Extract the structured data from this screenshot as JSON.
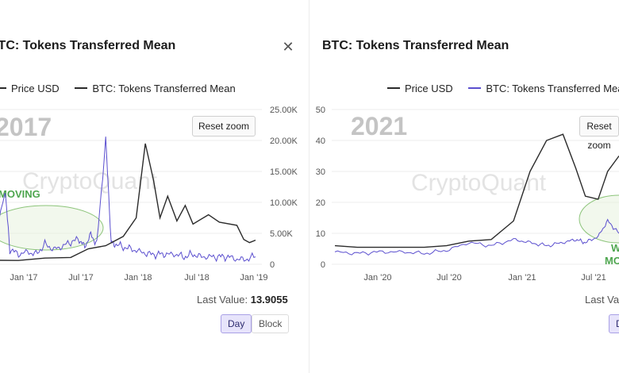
{
  "left": {
    "title": "BTC: Tokens Transferred Mean",
    "close_icon": "close-icon",
    "legend": [
      {
        "label": "Price USD",
        "color": "#2b2b2b"
      },
      {
        "label": "BTC: Tokens Transferred Mean",
        "color": "#5b4fcf"
      }
    ],
    "reset_zoom": "Reset zoom",
    "year_annotation": "2017",
    "watermark": "CryptoQuant",
    "moving_text": "MOVING",
    "last_value_label": "Last Value:",
    "last_value": "13.9055",
    "granularity": [
      "Day",
      "Block"
    ],
    "active_granularity": "Day"
  },
  "right": {
    "title": "BTC: Tokens Transferred Mean",
    "legend": [
      {
        "label": "Price USD",
        "color": "#2b2b2b"
      },
      {
        "label": "BTC: Tokens Transferred Mean",
        "color": "#5b4fcf"
      }
    ],
    "reset_zoom": "Reset zoom",
    "year_annotation": "2021",
    "watermark": "CryptoQuant",
    "moving_text_1": "W",
    "moving_text_2": "MO",
    "last_value_label": "Last Va",
    "granularity": [
      "D"
    ],
    "active_granularity": "D"
  },
  "colors": {
    "price": "#2b2b2b",
    "tokens": "#5b4fcf",
    "annotation_fill": "#e8f3df",
    "annotation_stroke": "#8cc47a",
    "moving_text": "#4ea64f",
    "grid": "#ececec"
  },
  "chart_data": [
    {
      "type": "line",
      "title": "BTC: Tokens Transferred Mean",
      "x_ticks": [
        "Jan '17",
        "Jul '17",
        "Jan '18",
        "Jul '18",
        "Jan '19"
      ],
      "y_right_ticks": [
        "25.00K",
        "20.00K",
        "15.00K",
        "10.00K",
        "5.00K",
        "0"
      ],
      "price_axis_range": [
        0,
        25000
      ],
      "grid": "horizontal",
      "legend_position": "top",
      "series": [
        {
          "name": "Price USD",
          "axis": "right",
          "x": [
            "2016-07-01",
            "2016-10-01",
            "2017-01-01",
            "2017-04-01",
            "2017-06-01",
            "2017-08-01",
            "2017-10-01",
            "2017-11-15",
            "2017-12-17",
            "2018-01-15",
            "2018-02-06",
            "2018-03-05",
            "2018-04-06",
            "2018-05-05",
            "2018-06-01",
            "2018-07-25",
            "2018-09-01",
            "2018-11-01",
            "2018-11-25",
            "2018-12-15",
            "2019-01-05"
          ],
          "values": [
            650,
            620,
            1000,
            1100,
            2500,
            3000,
            4500,
            7500,
            19500,
            13500,
            7500,
            11000,
            7000,
            9500,
            6500,
            8000,
            6800,
            6300,
            4000,
            3500,
            3900
          ]
        },
        {
          "name": "BTC: Tokens Transferred Mean",
          "axis": "left",
          "x": [
            "2016-07-01",
            "2016-08-15",
            "2016-09-01",
            "2016-10-01",
            "2016-11-01",
            "2016-12-01",
            "2017-01-01",
            "2017-02-01",
            "2017-03-01",
            "2017-04-01",
            "2017-05-01",
            "2017-05-20",
            "2017-06-10",
            "2017-07-01",
            "2017-08-01",
            "2017-08-20",
            "2017-09-01",
            "2017-10-01",
            "2017-11-01",
            "2017-12-01",
            "2018-01-01",
            "2018-02-01",
            "2018-03-01",
            "2018-04-01",
            "2018-05-01",
            "2018-06-01",
            "2018-07-01",
            "2018-08-01",
            "2018-09-01",
            "2018-10-01",
            "2018-11-01",
            "2018-12-01",
            "2019-01-05"
          ],
          "values": [
            3,
            30,
            6,
            4,
            5,
            4,
            8,
            6,
            7,
            9,
            10,
            7,
            12,
            8,
            50,
            9,
            8,
            7,
            6,
            5,
            4,
            4,
            4,
            4,
            3,
            4,
            3,
            3,
            3,
            3,
            2,
            2,
            3
          ]
        }
      ]
    },
    {
      "type": "line",
      "title": "BTC: Tokens Transferred Mean",
      "x_ticks": [
        "Jan '20",
        "Jul '20",
        "Jan '21",
        "Jul '21"
      ],
      "y_left_ticks": [
        "50",
        "40",
        "30",
        "20",
        "10",
        "0"
      ],
      "price_axis_range": [
        0,
        50
      ],
      "grid": "horizontal",
      "legend_position": "top",
      "series": [
        {
          "name": "Price USD",
          "axis": "left",
          "x": [
            "2019-08-01",
            "2019-10-01",
            "2019-12-01",
            "2020-02-01",
            "2020-04-01",
            "2020-06-01",
            "2020-08-01",
            "2020-10-01",
            "2020-12-01",
            "2021-01-15",
            "2021-03-01",
            "2021-04-15",
            "2021-05-20",
            "2021-06-15",
            "2021-07-20",
            "2021-08-15",
            "2021-09-15"
          ],
          "values": [
            6,
            5.5,
            5.5,
            5.5,
            5.5,
            6,
            7.5,
            8,
            14,
            30,
            40,
            42,
            31,
            22,
            21,
            30,
            35
          ]
        },
        {
          "name": "BTC: Tokens Transferred Mean",
          "axis": "left",
          "x": [
            "2019-08-01",
            "2019-10-01",
            "2019-12-01",
            "2020-02-01",
            "2020-04-01",
            "2020-06-01",
            "2020-08-01",
            "2020-10-01",
            "2020-12-01",
            "2021-01-15",
            "2021-03-01",
            "2021-04-15",
            "2021-05-20",
            "2021-06-15",
            "2021-07-20",
            "2021-08-15",
            "2021-09-15"
          ],
          "values": [
            4,
            3.5,
            4,
            4,
            3.5,
            4.5,
            7,
            6,
            8,
            7,
            6,
            7,
            8,
            7,
            9,
            14,
            10
          ]
        }
      ]
    }
  ]
}
